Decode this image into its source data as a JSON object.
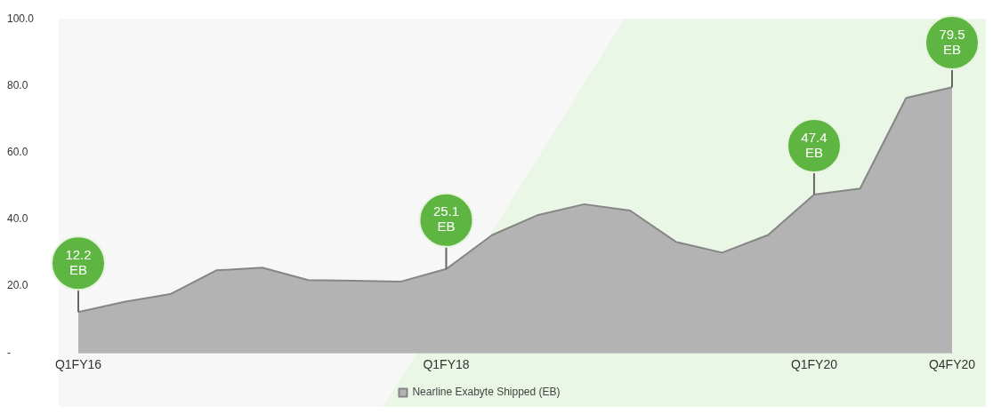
{
  "chart_data": {
    "type": "area",
    "categories": [
      "Q1FY16",
      null,
      null,
      null,
      null,
      null,
      null,
      null,
      "Q1FY18",
      null,
      null,
      null,
      null,
      null,
      null,
      null,
      "Q1FY20",
      null,
      null,
      "Q4FY20"
    ],
    "series": [
      {
        "name": "Nearline Exabyte Shipped (EB)",
        "color": "#b3b3b3",
        "values": [
          12.2,
          15.3,
          17.6,
          24.7,
          25.5,
          21.8,
          21.6,
          21.3,
          25.1,
          35.3,
          41.3,
          44.5,
          42.6,
          33.2,
          30.0,
          35.3,
          47.4,
          49.2,
          76.3,
          79.5
        ]
      }
    ],
    "ylim": [
      0,
      100
    ],
    "yticks": [
      {
        "value": 0,
        "label": "-"
      },
      {
        "value": 20,
        "label": "20.0"
      },
      {
        "value": 40,
        "label": "40.0"
      },
      {
        "value": 60,
        "label": "60.0"
      },
      {
        "value": 80,
        "label": "80.0"
      },
      {
        "value": 100,
        "label": "100.0"
      }
    ],
    "annotations": [
      {
        "text": "12.2 EB",
        "x": "Q1FY16",
        "y": 12.2
      },
      {
        "text": "25.1 EB",
        "x": "Q1FY18",
        "y": 25.1
      },
      {
        "text": "47.4 EB",
        "x": "Q1FY20",
        "y": 47.4
      },
      {
        "text": "79.5 EB",
        "x": "Q4FY20",
        "y": 79.5
      }
    ],
    "grid": false,
    "legend": "bottom"
  }
}
